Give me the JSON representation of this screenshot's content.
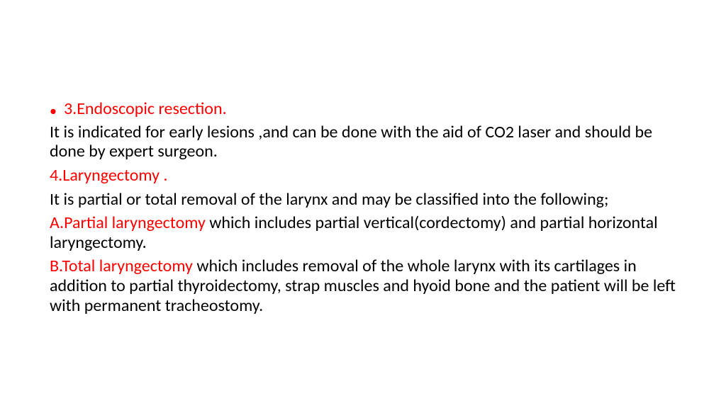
{
  "colors": {
    "red": "#ff0000",
    "black": "#000000",
    "background": "#ffffff"
  },
  "typography": {
    "font_family": "Calibri, sans-serif",
    "body_fontsize": 24,
    "line_height": 1.15
  },
  "bullet": {
    "glyph": "•",
    "heading": "3.Endoscopic resection."
  },
  "para1": "It is indicated for early lesions ,and can be done with the aid of CO2 laser and should be done by expert surgeon.",
  "heading4": "4.Laryngectomy .",
  "para2": "It is partial or total removal of the larynx and may be classified into the following;",
  "itemA": {
    "red": "A.Partial laryngectomy ",
    "black": "which includes partial vertical(cordectomy) and partial horizontal laryngectomy."
  },
  "itemB": {
    "red": "B.Total laryngectomy ",
    "black": "which includes removal of the whole larynx with its cartilages in addition to partial thyroidectomy, strap muscles and hyoid bone and the patient will be left with permanent tracheostomy."
  }
}
